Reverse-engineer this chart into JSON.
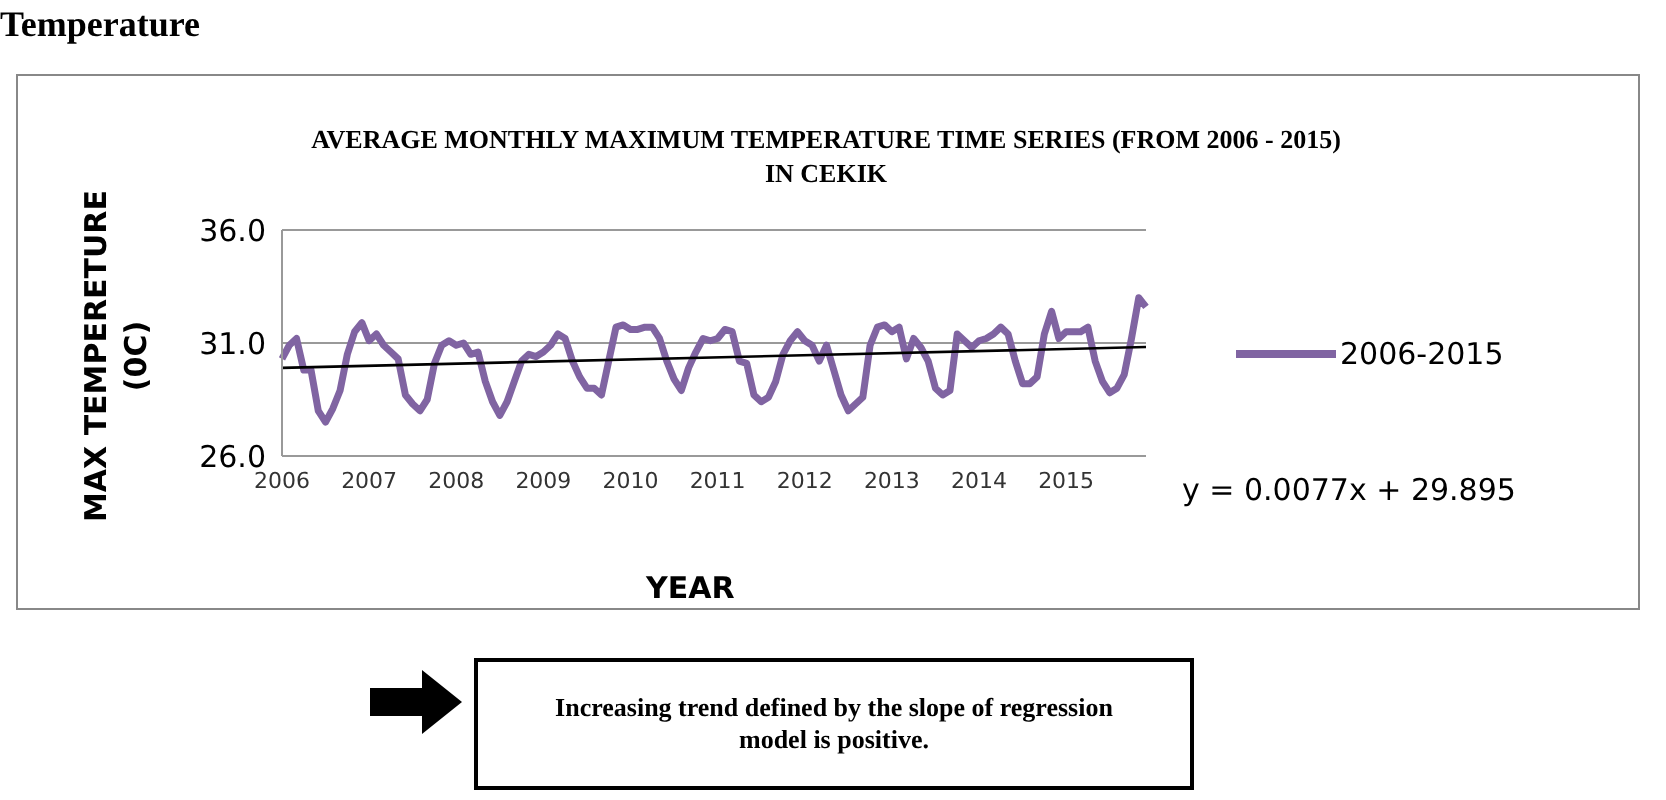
{
  "chart_data": {
    "type": "line",
    "title": "AVERAGE MONTHLY MAXIMUM TEMPERATURE TIME SERIES (FROM 2006 - 2015)\nIN CEKIK",
    "xlabel": "YEAR",
    "ylabel": "MAX TEMPERETURE\n(0C)",
    "categories": [
      "2006",
      null,
      null,
      null,
      null,
      null,
      null,
      null,
      null,
      null,
      null,
      null,
      "2007",
      null,
      null,
      null,
      null,
      null,
      null,
      null,
      null,
      null,
      null,
      null,
      "2008",
      null,
      null,
      null,
      null,
      null,
      null,
      null,
      null,
      null,
      null,
      null,
      "2009",
      null,
      null,
      null,
      null,
      null,
      null,
      null,
      null,
      null,
      null,
      null,
      "2010",
      null,
      null,
      null,
      null,
      null,
      null,
      null,
      null,
      null,
      null,
      null,
      "2011",
      null,
      null,
      null,
      null,
      null,
      null,
      null,
      null,
      null,
      null,
      null,
      "2012",
      null,
      null,
      null,
      null,
      null,
      null,
      null,
      null,
      null,
      null,
      null,
      "2013",
      null,
      null,
      null,
      null,
      null,
      null,
      null,
      null,
      null,
      null,
      null,
      "2014",
      null,
      null,
      null,
      null,
      null,
      null,
      null,
      null,
      null,
      null,
      null,
      "2015",
      null,
      null,
      null,
      null,
      null,
      null,
      null,
      null,
      null,
      null,
      null
    ],
    "series": [
      {
        "name": "2006-2015",
        "color": "#8064a2",
        "values": [
          30.3,
          30.9,
          31.2,
          29.8,
          29.8,
          28.0,
          27.5,
          28.1,
          28.9,
          30.5,
          31.5,
          31.9,
          31.1,
          31.4,
          30.9,
          30.6,
          30.3,
          28.7,
          28.3,
          28.0,
          28.5,
          30.1,
          30.9,
          31.1,
          30.9,
          31.0,
          30.5,
          30.6,
          29.3,
          28.4,
          27.8,
          28.4,
          29.3,
          30.2,
          30.5,
          30.4,
          30.6,
          30.9,
          31.4,
          31.2,
          30.2,
          29.5,
          29.0,
          29.0,
          28.7,
          30.2,
          31.7,
          31.8,
          31.6,
          31.6,
          31.7,
          31.7,
          31.2,
          30.2,
          29.4,
          28.9,
          29.9,
          30.6,
          31.2,
          31.1,
          31.2,
          31.6,
          31.5,
          30.2,
          30.1,
          28.7,
          28.4,
          28.6,
          29.3,
          30.5,
          31.1,
          31.5,
          31.1,
          30.9,
          30.2,
          30.9,
          29.8,
          28.7,
          28.0,
          28.3,
          28.6,
          30.9,
          31.7,
          31.8,
          31.5,
          31.7,
          30.3,
          31.2,
          30.8,
          30.2,
          29.0,
          28.7,
          28.9,
          31.4,
          31.1,
          30.8,
          31.1,
          31.2,
          31.4,
          31.7,
          31.4,
          30.2,
          29.2,
          29.2,
          29.5,
          31.4,
          32.4,
          31.2,
          31.5,
          31.5,
          31.5,
          31.7,
          30.2,
          29.3,
          28.8,
          29.0,
          29.6,
          31.2,
          33.0,
          32.6
        ]
      },
      {
        "type": "line",
        "color": "#000000",
        "values": [
          29.9,
          null,
          null,
          null,
          null,
          null,
          null,
          null,
          null,
          null,
          null,
          null,
          null,
          null,
          null,
          null,
          null,
          null,
          null,
          null,
          null,
          null,
          null,
          null,
          null,
          null,
          null,
          null,
          null,
          null,
          null,
          null,
          null,
          null,
          null,
          null,
          null,
          null,
          null,
          null,
          null,
          null,
          null,
          null,
          null,
          null,
          null,
          null,
          null,
          null,
          null,
          null,
          null,
          null,
          null,
          null,
          null,
          null,
          null,
          null,
          null,
          null,
          null,
          null,
          null,
          null,
          null,
          null,
          null,
          null,
          null,
          null,
          null,
          null,
          null,
          null,
          null,
          null,
          null,
          null,
          null,
          null,
          null,
          null,
          null,
          null,
          null,
          null,
          null,
          null,
          null,
          null,
          null,
          null,
          null,
          null,
          null,
          null,
          null,
          null,
          null,
          null,
          null,
          null,
          null,
          null,
          null,
          null,
          null,
          null,
          null,
          null,
          null,
          null,
          null,
          null,
          null,
          null,
          null,
          30.82
        ]
      }
    ],
    "ylim": [
      26,
      36
    ],
    "yticks": [
      {
        "value": 26,
        "label": "26.0"
      },
      {
        "value": 31,
        "label": "31.0"
      },
      {
        "value": 36,
        "label": "36.0"
      }
    ],
    "grid": "y",
    "legend": "right",
    "marker": "none",
    "line_style": "solid",
    "annotations": [
      "Temperature",
      "y = 0.0077x + 29.895",
      "Increasing trend defined by the slope of regression model is positive."
    ]
  }
}
